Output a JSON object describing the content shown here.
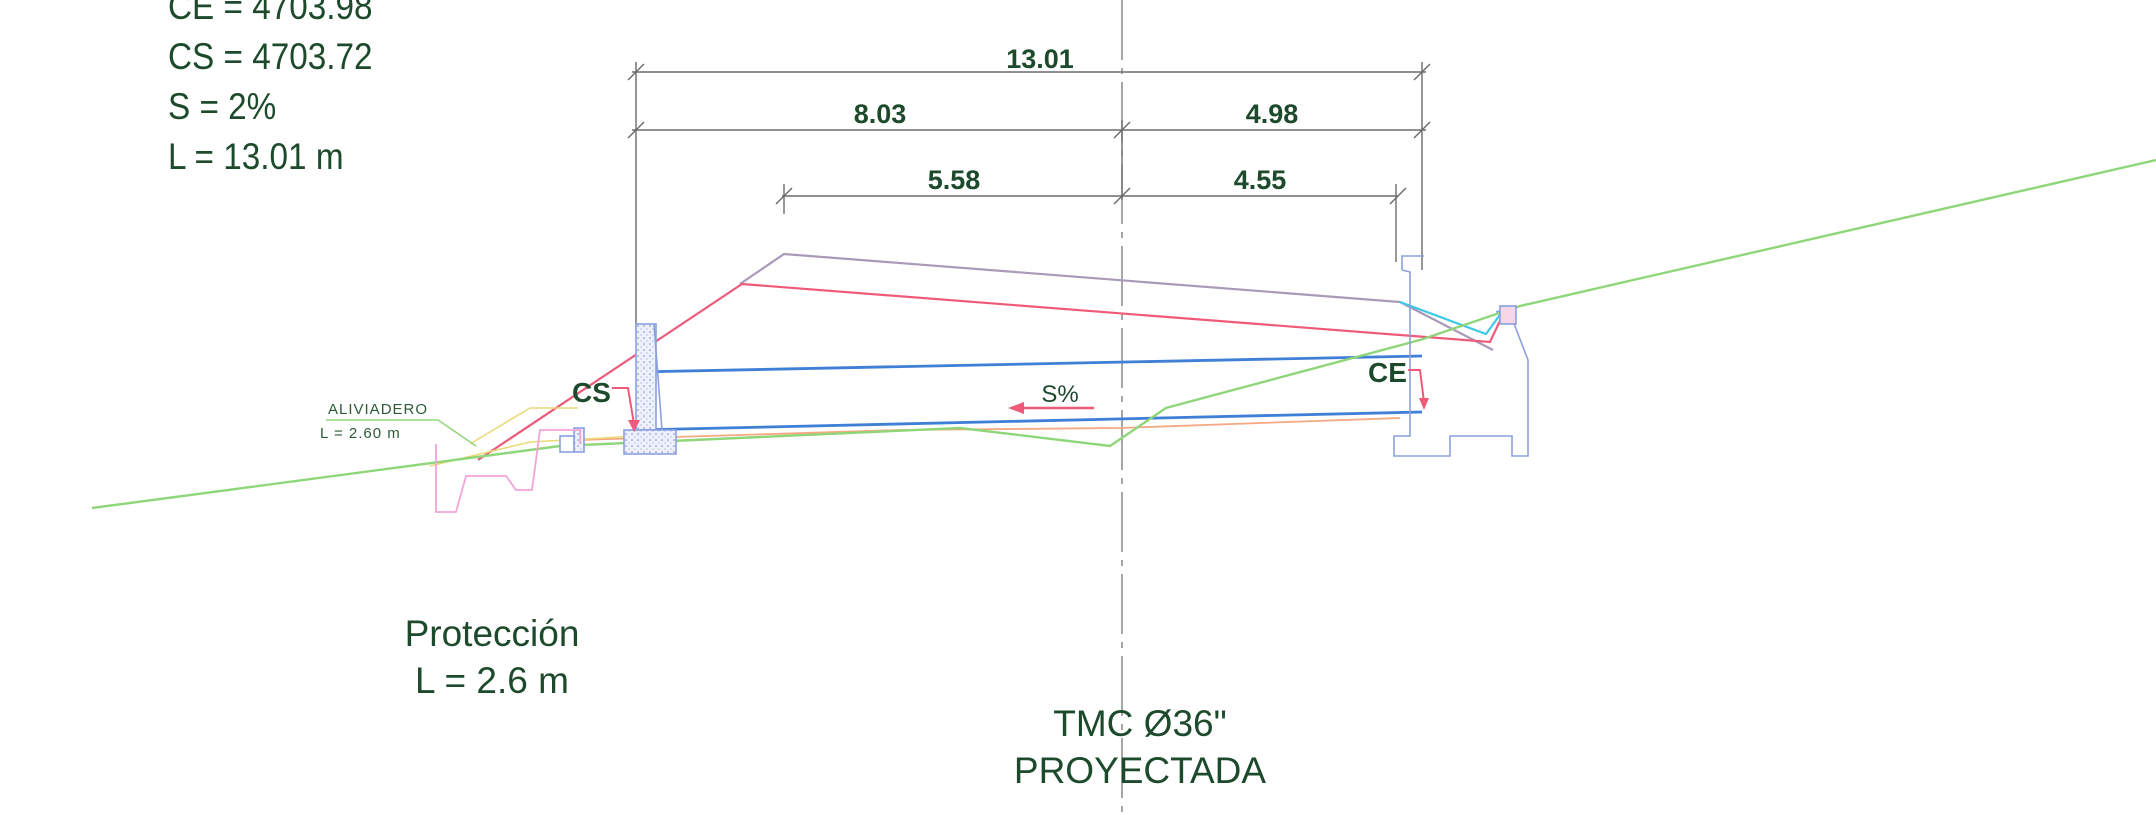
{
  "specs": {
    "ce": "CE = 4703.98",
    "cs": "CS = 4703.72",
    "slope": "S = 2%",
    "length": "L = 13.01 m"
  },
  "dimensions": {
    "total": "13.01",
    "left": "8.03",
    "right": "4.98",
    "inner_left": "5.58",
    "inner_right": "4.55"
  },
  "tags": {
    "cs": "CS",
    "ce": "CE",
    "slope": "S%"
  },
  "aliviadero": {
    "title": "ALIVIADERO",
    "length": "L = 2.60 m"
  },
  "proteccion": {
    "title": "Protección",
    "length": "L = 2.6 m"
  },
  "pipe": {
    "line1": "TMC Ø36\"",
    "line2": "PROYECTADA"
  },
  "colors": {
    "terrain": "#8fd67a",
    "pipe": "#3f7fd6",
    "road_grey": "#a89ab8",
    "road_red": "#f05a7a",
    "structure": "#8aa0e0",
    "text": "#1d4a2c"
  }
}
